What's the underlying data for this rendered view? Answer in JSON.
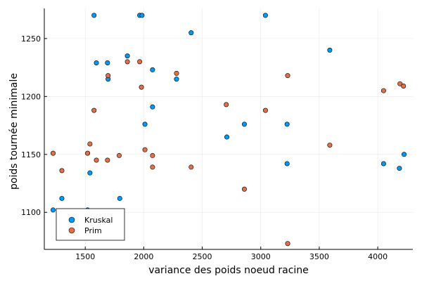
{
  "chart_data": {
    "type": "scatter",
    "title": "",
    "xlabel": "variance des poids noeud racine",
    "ylabel": "poids tournée minimale",
    "xlim": [
      1150,
      4300
    ],
    "ylim": [
      1068,
      1276
    ],
    "xticks": [
      1500,
      2000,
      2500,
      3000,
      3500,
      4000
    ],
    "yticks": [
      1100,
      1150,
      1200,
      1250
    ],
    "xtick_labels": [
      "1500",
      "2000",
      "2500",
      "3000",
      "3500",
      "4000"
    ],
    "ytick_labels": [
      "1100",
      "1150",
      "1200",
      "1250"
    ],
    "grid": true,
    "legend_position": "bottom-left",
    "series": [
      {
        "name": "Kruskal",
        "color": "#009af9",
        "points": [
          [
            1575,
            1270
          ],
          [
            1965,
            1270
          ],
          [
            1985,
            1270
          ],
          [
            3040,
            1270
          ],
          [
            2405,
            1255
          ],
          [
            3590,
            1240
          ],
          [
            1860,
            1235
          ],
          [
            1595,
            1229
          ],
          [
            1690,
            1229
          ],
          [
            2075,
            1223
          ],
          [
            1695,
            1215
          ],
          [
            2280,
            1215
          ],
          [
            2075,
            1191
          ],
          [
            2010,
            1176
          ],
          [
            2860,
            1176
          ],
          [
            3225,
            1176
          ],
          [
            2710,
            1165
          ],
          [
            4225,
            1150
          ],
          [
            3225,
            1142
          ],
          [
            4050,
            1142
          ],
          [
            4185,
            1138
          ],
          [
            1540,
            1134
          ],
          [
            1300,
            1112
          ],
          [
            1795,
            1112
          ],
          [
            1225,
            1102
          ],
          [
            1520,
            1102
          ]
        ]
      },
      {
        "name": "Prim",
        "color": "#e26f46",
        "points": [
          [
            1860,
            1230
          ],
          [
            1965,
            1230
          ],
          [
            2280,
            1220
          ],
          [
            1695,
            1218
          ],
          [
            3230,
            1218
          ],
          [
            4190,
            1211
          ],
          [
            4220,
            1209
          ],
          [
            1980,
            1208
          ],
          [
            4050,
            1205
          ],
          [
            2705,
            1193
          ],
          [
            1575,
            1188
          ],
          [
            3040,
            1188
          ],
          [
            1540,
            1159
          ],
          [
            3590,
            1158
          ],
          [
            2010,
            1154
          ],
          [
            1225,
            1151
          ],
          [
            1520,
            1151
          ],
          [
            1790,
            1149
          ],
          [
            2075,
            1149
          ],
          [
            1595,
            1145
          ],
          [
            1690,
            1145
          ],
          [
            2075,
            1139
          ],
          [
            2405,
            1139
          ],
          [
            1300,
            1136
          ],
          [
            2860,
            1120
          ],
          [
            3230,
            1073
          ]
        ]
      }
    ]
  }
}
